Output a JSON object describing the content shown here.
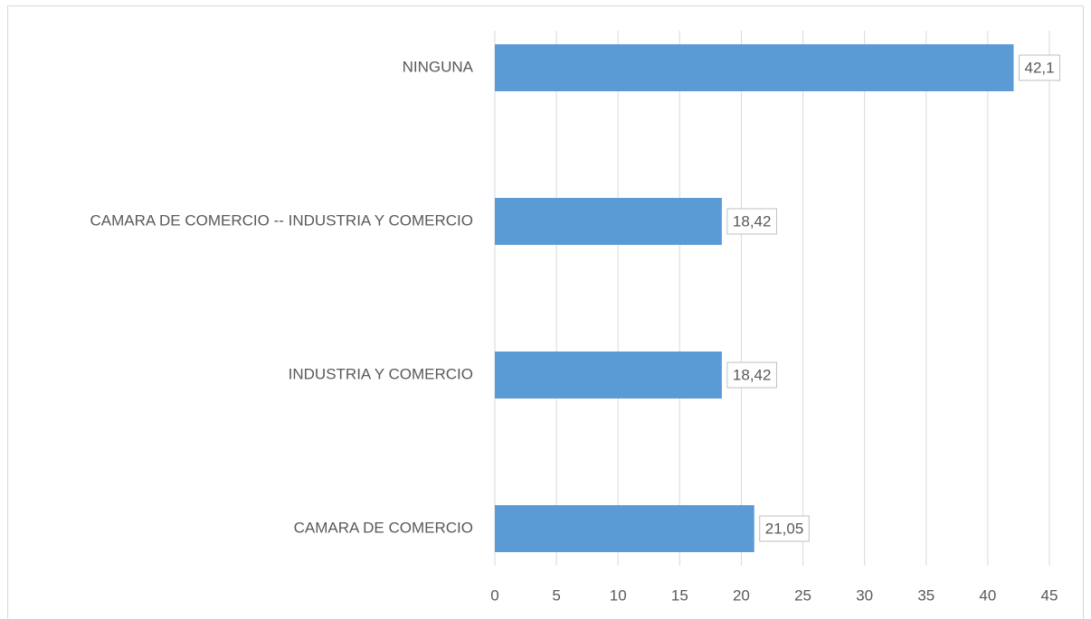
{
  "chart_data": {
    "type": "bar",
    "orientation": "horizontal",
    "categories": [
      "NINGUNA",
      "CAMARA DE COMERCIO -- INDUSTRIA Y COMERCIO",
      "INDUSTRIA Y COMERCIO",
      "CAMARA DE COMERCIO"
    ],
    "values": [
      42.1,
      18.42,
      18.42,
      21.05
    ],
    "value_labels": [
      "42,1",
      "18,42",
      "18,42",
      "21,05"
    ],
    "color": "#5b9bd5",
    "xlim": [
      0,
      45
    ],
    "xticks": [
      0,
      5,
      10,
      15,
      20,
      25,
      30,
      35,
      40,
      45
    ],
    "grid": true
  }
}
